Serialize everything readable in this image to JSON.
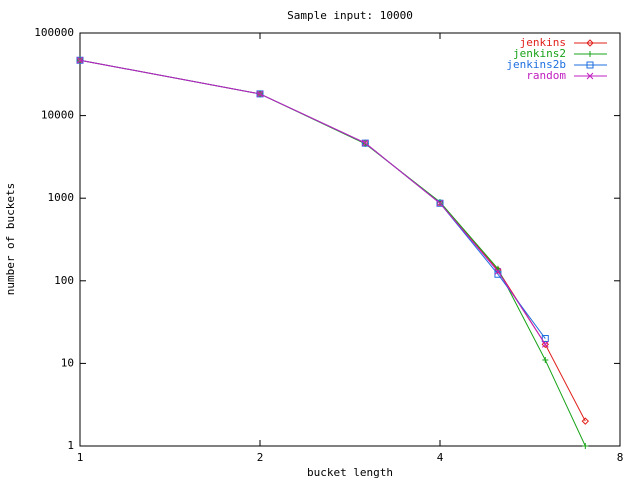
{
  "chart_data": {
    "type": "line",
    "title": "Sample input: 10000",
    "x_label": "bucket length",
    "y_label": "number of buckets",
    "x": [
      1,
      2,
      3,
      4,
      5,
      6,
      7
    ],
    "series": [
      {
        "name": "jenkins",
        "color": "#e0201b",
        "marker": "diamond",
        "values": [
          46800,
          18300,
          4650,
          870,
          135,
          17,
          2
        ]
      },
      {
        "name": "jenkins2",
        "color": "#19a319",
        "marker": "plus",
        "values": [
          46800,
          18300,
          4550,
          900,
          140,
          11,
          1
        ]
      },
      {
        "name": "jenkins2b",
        "color": "#1e6fe0",
        "marker": "square",
        "values": [
          46800,
          18300,
          4650,
          870,
          120,
          20,
          null
        ]
      },
      {
        "name": "random",
        "color": "#c020c0",
        "marker": "cross",
        "values": [
          46800,
          18300,
          4650,
          870,
          130,
          17,
          null
        ]
      }
    ],
    "xlim": [
      1,
      8
    ],
    "xticks": [
      1,
      2,
      4,
      8
    ],
    "xlog": true,
    "ylim": [
      1,
      100000
    ],
    "yticks": [
      1,
      10,
      100,
      1000,
      10000,
      100000
    ],
    "ylog": true,
    "legend": "top-right"
  }
}
